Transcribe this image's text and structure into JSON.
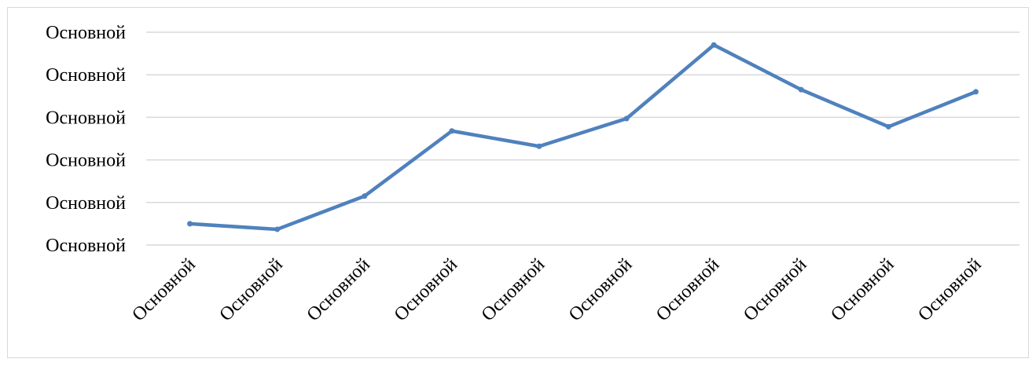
{
  "chart_data": {
    "type": "line",
    "title": "",
    "xlabel": "",
    "ylabel": "",
    "categories": [
      "Основной",
      "Основной",
      "Основной",
      "Основной",
      "Основной",
      "Основной",
      "Основной",
      "Основной",
      "Основной",
      "Основной"
    ],
    "y_tick_labels": [
      "Основной",
      "Основной",
      "Основной",
      "Основной",
      "Основной",
      "Основной"
    ],
    "ylim": [
      0,
      5
    ],
    "grid": true,
    "legend": "none",
    "series": [
      {
        "values": [
          0.5,
          0.37,
          1.15,
          2.68,
          2.32,
          2.97,
          4.7,
          3.65,
          2.78,
          3.6
        ],
        "color": "#4f81bd"
      }
    ],
    "colors": {
      "gridline": "#d9d9d9",
      "border": "#d9d9d9",
      "text": "#000000"
    }
  }
}
